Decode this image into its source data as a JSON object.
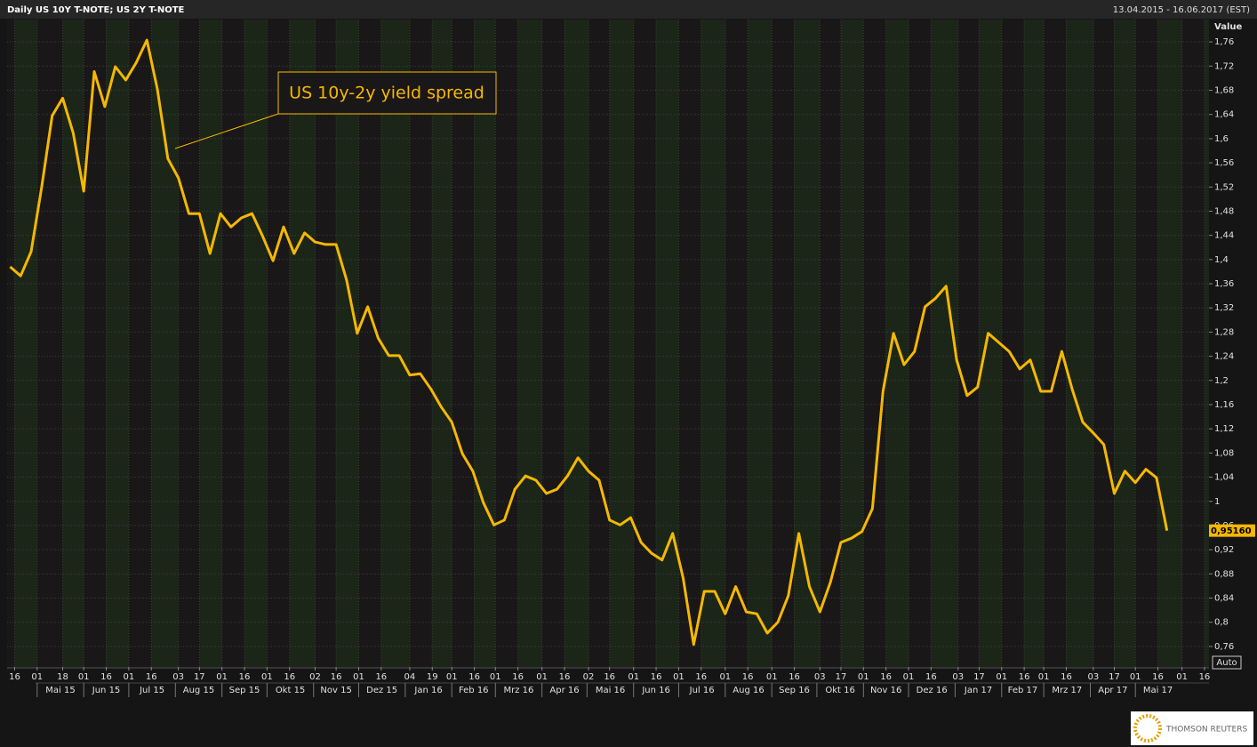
{
  "chart_data": {
    "type": "line",
    "title": "Daily US 10Y T-NOTE; US 2Y T-NOTE",
    "date_range": "13.04.2015 - 16.06.2017 (EST)",
    "y_axis_label": "Value",
    "annotation": "US 10y-2y yield spread",
    "scale_button": "Auto",
    "logo": "THOMSON REUTERS",
    "color": "#f5b800",
    "grid": true,
    "xlim": [
      "2015-04-11",
      "2017-06-19"
    ],
    "ylim": [
      0.726,
      1.797
    ],
    "yticks": [
      {
        "value": 0.76,
        "label": "0,76"
      },
      {
        "value": 0.8,
        "label": "0,8"
      },
      {
        "value": 0.84,
        "label": "0,84"
      },
      {
        "value": 0.88,
        "label": "0,88"
      },
      {
        "value": 0.92,
        "label": "0,92"
      },
      {
        "value": 0.96,
        "label": "0,96"
      },
      1,
      {
        "value": 1.04,
        "label": "1,04"
      },
      {
        "value": 1.08,
        "label": "1,08"
      },
      {
        "value": 1.12,
        "label": "1,12"
      },
      {
        "value": 1.16,
        "label": "1,16"
      },
      {
        "value": 1.2,
        "label": "1,2"
      },
      {
        "value": 1.24,
        "label": "1,24"
      },
      {
        "value": 1.28,
        "label": "1,28"
      },
      {
        "value": 1.32,
        "label": "1,32"
      },
      {
        "value": 1.36,
        "label": "1,36"
      },
      {
        "value": 1.4,
        "label": "1,4"
      },
      {
        "value": 1.44,
        "label": "1,44"
      },
      {
        "value": 1.48,
        "label": "1,48"
      },
      {
        "value": 1.52,
        "label": "1,52"
      },
      {
        "value": 1.56,
        "label": "1,56"
      },
      {
        "value": 1.6,
        "label": "1,6"
      },
      {
        "value": 1.64,
        "label": "1,64"
      },
      {
        "value": 1.68,
        "label": "1,68"
      },
      {
        "value": 1.72,
        "label": "1,72"
      },
      {
        "value": 1.76,
        "label": "1,76"
      }
    ],
    "xticks": [
      {
        "value": "2015-04-16",
        "label": "16"
      },
      {
        "value": "2015-05-01",
        "label": "01"
      },
      {
        "value": "2015-05-18",
        "label": "18"
      },
      {
        "value": "2015-06-01",
        "label": "01"
      },
      {
        "value": "2015-06-16",
        "label": "16"
      },
      {
        "value": "2015-07-01",
        "label": "01"
      },
      {
        "value": "2015-07-16",
        "label": "16"
      },
      {
        "value": "2015-08-03",
        "label": "03"
      },
      {
        "value": "2015-08-17",
        "label": "17"
      },
      {
        "value": "2015-09-01",
        "label": "01"
      },
      {
        "value": "2015-09-16",
        "label": "16"
      },
      {
        "value": "2015-10-01",
        "label": "01"
      },
      {
        "value": "2015-10-16",
        "label": "16"
      },
      {
        "value": "2015-11-02",
        "label": "02"
      },
      {
        "value": "2015-11-16",
        "label": "16"
      },
      {
        "value": "2015-12-01",
        "label": "01"
      },
      {
        "value": "2015-12-16",
        "label": "16"
      },
      {
        "value": "2016-01-04",
        "label": "04"
      },
      {
        "value": "2016-01-19",
        "label": "19"
      },
      {
        "value": "2016-02-01",
        "label": "01"
      },
      {
        "value": "2016-02-16",
        "label": "16"
      },
      {
        "value": "2016-03-01",
        "label": "01"
      },
      {
        "value": "2016-03-16",
        "label": "16"
      },
      {
        "value": "2016-04-01",
        "label": "01"
      },
      {
        "value": "2016-04-16",
        "label": "16"
      },
      {
        "value": "2016-05-02",
        "label": "02"
      },
      {
        "value": "2016-05-16",
        "label": "16"
      },
      {
        "value": "2016-06-01",
        "label": "01"
      },
      {
        "value": "2016-06-16",
        "label": "16"
      },
      {
        "value": "2016-07-01",
        "label": "01"
      },
      {
        "value": "2016-07-16",
        "label": "16"
      },
      {
        "value": "2016-08-01",
        "label": "01"
      },
      {
        "value": "2016-08-16",
        "label": "16"
      },
      {
        "value": "2016-09-01",
        "label": "01"
      },
      {
        "value": "2016-09-16",
        "label": "16"
      },
      {
        "value": "2016-10-03",
        "label": "03"
      },
      {
        "value": "2016-10-17",
        "label": "17"
      },
      {
        "value": "2016-11-01",
        "label": "01"
      },
      {
        "value": "2016-11-16",
        "label": "16"
      },
      {
        "value": "2016-12-01",
        "label": "01"
      },
      {
        "value": "2016-12-16",
        "label": "16"
      },
      {
        "value": "2017-01-03",
        "label": "03"
      },
      {
        "value": "2017-01-17",
        "label": "17"
      },
      {
        "value": "2017-02-01",
        "label": "01"
      },
      {
        "value": "2017-02-16",
        "label": "16"
      },
      {
        "value": "2017-03-01",
        "label": "01"
      },
      {
        "value": "2017-03-16",
        "label": "16"
      },
      {
        "value": "2017-04-03",
        "label": "03"
      },
      {
        "value": "2017-04-17",
        "label": "17"
      },
      {
        "value": "2017-05-01",
        "label": "01"
      },
      {
        "value": "2017-05-16",
        "label": "16"
      },
      {
        "value": "2017-06-01",
        "label": "01"
      },
      {
        "value": "2017-06-16",
        "label": "16"
      }
    ],
    "month_labels": [
      {
        "value": "2015-05-01",
        "label": "Mai 15"
      },
      {
        "value": "2015-06-01",
        "label": "Jun 15"
      },
      {
        "value": "2015-07-01",
        "label": "Jul 15"
      },
      {
        "value": "2015-08-01",
        "label": "Aug 15"
      },
      {
        "value": "2015-09-01",
        "label": "Sep 15"
      },
      {
        "value": "2015-10-01",
        "label": "Okt 15"
      },
      {
        "value": "2015-11-01",
        "label": "Nov 15"
      },
      {
        "value": "2015-12-01",
        "label": "Dez 15"
      },
      {
        "value": "2016-01-01",
        "label": "Jan 16"
      },
      {
        "value": "2016-02-01",
        "label": "Feb 16"
      },
      {
        "value": "2016-03-01",
        "label": "Mrz 16"
      },
      {
        "value": "2016-04-01",
        "label": "Apr 16"
      },
      {
        "value": "2016-05-01",
        "label": "Mai 16"
      },
      {
        "value": "2016-06-01",
        "label": "Jun 16"
      },
      {
        "value": "2016-07-01",
        "label": "Jul 16"
      },
      {
        "value": "2016-08-01",
        "label": "Aug 16"
      },
      {
        "value": "2016-09-01",
        "label": "Sep 16"
      },
      {
        "value": "2016-10-01",
        "label": "Okt 16"
      },
      {
        "value": "2016-11-01",
        "label": "Nov 16"
      },
      {
        "value": "2016-12-01",
        "label": "Dez 16"
      },
      {
        "value": "2017-01-01",
        "label": "Jan 17"
      },
      {
        "value": "2017-02-01",
        "label": "Feb 17"
      },
      {
        "value": "2017-03-01",
        "label": "Mrz 17"
      },
      {
        "value": "2017-04-01",
        "label": "Apr 17"
      },
      {
        "value": "2017-05-01",
        "label": "Mai 17"
      }
    ],
    "x": [
      "2015-04-13",
      "2015-04-20",
      "2015-04-27",
      "2015-05-04",
      "2015-05-11",
      "2015-05-18",
      "2015-05-25",
      "2015-06-01",
      "2015-06-08",
      "2015-06-15",
      "2015-06-22",
      "2015-06-29",
      "2015-07-06",
      "2015-07-13",
      "2015-07-20",
      "2015-07-27",
      "2015-08-03",
      "2015-08-10",
      "2015-08-17",
      "2015-08-24",
      "2015-08-31",
      "2015-09-07",
      "2015-09-14",
      "2015-09-21",
      "2015-09-28",
      "2015-10-05",
      "2015-10-12",
      "2015-10-19",
      "2015-10-26",
      "2015-11-02",
      "2015-11-09",
      "2015-11-16",
      "2015-11-23",
      "2015-11-30",
      "2015-12-07",
      "2015-12-14",
      "2015-12-21",
      "2015-12-28",
      "2016-01-04",
      "2016-01-11",
      "2016-01-18",
      "2016-01-25",
      "2016-02-01",
      "2016-02-08",
      "2016-02-15",
      "2016-02-22",
      "2016-02-29",
      "2016-03-07",
      "2016-03-14",
      "2016-03-21",
      "2016-03-28",
      "2016-04-04",
      "2016-04-11",
      "2016-04-18",
      "2016-04-25",
      "2016-05-02",
      "2016-05-09",
      "2016-05-16",
      "2016-05-23",
      "2016-05-30",
      "2016-06-06",
      "2016-06-13",
      "2016-06-20",
      "2016-06-27",
      "2016-07-04",
      "2016-07-11",
      "2016-07-18",
      "2016-07-25",
      "2016-08-01",
      "2016-08-08",
      "2016-08-15",
      "2016-08-22",
      "2016-08-29",
      "2016-09-05",
      "2016-09-12",
      "2016-09-19",
      "2016-09-26",
      "2016-10-03",
      "2016-10-10",
      "2016-10-17",
      "2016-10-24",
      "2016-10-31",
      "2016-11-07",
      "2016-11-14",
      "2016-11-21",
      "2016-11-28",
      "2016-12-05",
      "2016-12-12",
      "2016-12-19",
      "2016-12-26",
      "2017-01-02",
      "2017-01-09",
      "2017-01-16",
      "2017-01-23",
      "2017-01-30",
      "2017-02-06",
      "2017-02-13",
      "2017-02-20",
      "2017-02-27",
      "2017-03-06",
      "2017-03-13",
      "2017-03-20",
      "2017-03-27",
      "2017-04-03",
      "2017-04-10",
      "2017-04-17",
      "2017-04-24",
      "2017-05-01",
      "2017-05-08",
      "2017-05-15",
      "2017-05-22"
    ],
    "values": [
      1.388,
      1.373,
      1.413,
      1.52,
      1.638,
      1.667,
      1.609,
      1.513,
      1.711,
      1.653,
      1.719,
      1.697,
      1.726,
      1.763,
      1.682,
      1.567,
      1.535,
      1.476,
      1.476,
      1.41,
      1.476,
      1.454,
      1.469,
      1.476,
      1.439,
      1.398,
      1.454,
      1.41,
      1.444,
      1.429,
      1.425,
      1.425,
      1.366,
      1.278,
      1.322,
      1.27,
      1.241,
      1.241,
      1.209,
      1.211,
      1.186,
      1.156,
      1.131,
      1.079,
      1.05,
      0.998,
      0.961,
      0.969,
      1.02,
      1.042,
      1.035,
      1.013,
      1.02,
      1.042,
      1.072,
      1.05,
      1.035,
      0.969,
      0.961,
      0.973,
      0.932,
      0.914,
      0.903,
      0.947,
      0.873,
      0.763,
      0.851,
      0.851,
      0.814,
      0.859,
      0.817,
      0.814,
      0.782,
      0.8,
      0.844,
      0.947,
      0.859,
      0.817,
      0.866,
      0.932,
      0.939,
      0.95,
      0.988,
      1.182,
      1.278,
      1.226,
      1.248,
      1.322,
      1.336,
      1.356,
      1.234,
      1.175,
      1.189,
      1.278,
      1.263,
      1.248,
      1.219,
      1.234,
      1.182,
      1.182,
      1.248,
      1.185,
      1.131,
      1.113,
      1.094,
      1.013,
      1.05,
      1.031,
      1.053,
      1.039,
      0.9516
    ],
    "value_labels": [
      null,
      null,
      null,
      null,
      null,
      null,
      null,
      null,
      null,
      null,
      null,
      null,
      null,
      null,
      null,
      null,
      null,
      null,
      null,
      null,
      null,
      null,
      null,
      null,
      null,
      null,
      null,
      null,
      null,
      null,
      null,
      null,
      null,
      null,
      null,
      null,
      null,
      null,
      null,
      null,
      null,
      null,
      null,
      null,
      null,
      null,
      null,
      null,
      null,
      null,
      null,
      null,
      null,
      null,
      null,
      null,
      null,
      null,
      null,
      null,
      null,
      null,
      null,
      null,
      null,
      null,
      null,
      null,
      null,
      null,
      null,
      null,
      null,
      null,
      null,
      null,
      null,
      null,
      null,
      null,
      null,
      null,
      null,
      null,
      null,
      null,
      null,
      null,
      null,
      null,
      null,
      null,
      null,
      null,
      null,
      null,
      null,
      null,
      null,
      null,
      null,
      null,
      null,
      null,
      null,
      null,
      null,
      null,
      null,
      null,
      "0,95160"
    ]
  }
}
